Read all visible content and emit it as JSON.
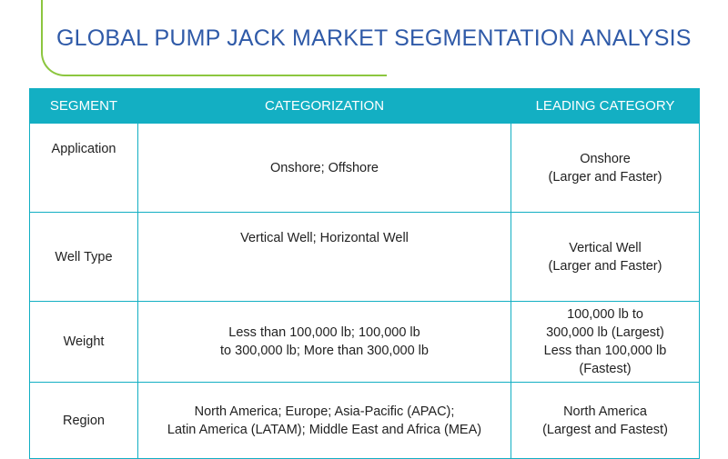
{
  "title": "GLOBAL PUMP JACK MARKET SEGMENTATION ANALYSIS",
  "headers": {
    "segment": "SEGMENT",
    "categorization": "CATEGORIZATION",
    "leading": "LEADING CATEGORY"
  },
  "rows": [
    {
      "segment": "Application",
      "categorization": [
        "Onshore; Offshore"
      ],
      "leading": [
        "Onshore",
        "(Larger and Faster)"
      ]
    },
    {
      "segment": "Well Type",
      "categorization": [
        "Vertical Well; Horizontal Well"
      ],
      "leading": [
        "Vertical Well",
        "(Larger and Faster)"
      ]
    },
    {
      "segment": "Weight",
      "categorization": [
        "Less than 100,000 lb; 100,000 lb",
        "to 300,000 lb; More than 300,000 lb"
      ],
      "leading": [
        "100,000 lb to",
        "300,000 lb (Largest)",
        "Less than 100,000 lb",
        "(Fastest)"
      ]
    },
    {
      "segment": "Region",
      "categorization": [
        "North America; Europe; Asia-Pacific (APAC);",
        "Latin America (LATAM); Middle East and Africa (MEA)"
      ],
      "leading": [
        "North America",
        "(Largest and Fastest)"
      ]
    }
  ]
}
